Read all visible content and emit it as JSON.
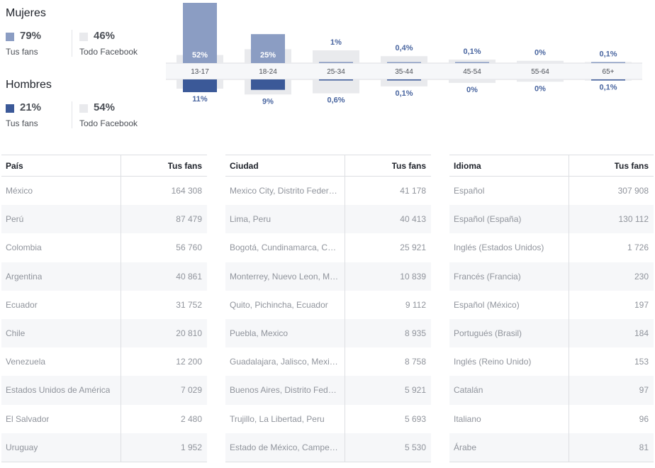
{
  "summary": {
    "women": {
      "title": "Mujeres",
      "fans_pct": "79%",
      "fans_label": "Tus fans",
      "all_pct": "46%",
      "all_label": "Todo Facebook"
    },
    "men": {
      "title": "Hombres",
      "fans_pct": "21%",
      "fans_label": "Tus fans",
      "all_pct": "54%",
      "all_label": "Todo Facebook"
    }
  },
  "colors": {
    "women": "#8b9dc3",
    "men": "#3b5998",
    "facebook": "#e9eaed",
    "label_blue": "#4a66a0",
    "text": "#4b4f56"
  },
  "chart_data": {
    "type": "bar",
    "categories": [
      "13-17",
      "18-24",
      "25-34",
      "35-44",
      "45-54",
      "55-64",
      "65+"
    ],
    "series": [
      {
        "name": "Mujeres",
        "values": [
          52,
          25,
          1,
          0.4,
          0.1,
          0,
          0.1
        ],
        "labels": [
          "52%",
          "25%",
          "1%",
          "0,4%",
          "0,1%",
          "0%",
          "0,1%"
        ]
      },
      {
        "name": "Hombres",
        "values": [
          11,
          9,
          0.6,
          0.1,
          0,
          0,
          0.1
        ],
        "labels": [
          "11%",
          "9%",
          "0,6%",
          "0,1%",
          "0%",
          "0%",
          "0,1%"
        ]
      }
    ],
    "todo_facebook": {
      "mujeres": [
        7,
        12,
        11,
        6,
        3,
        2,
        1
      ],
      "hombres": [
        8,
        13,
        12,
        6,
        3,
        2,
        1
      ]
    }
  },
  "tables": [
    {
      "header": {
        "col1": "País",
        "col2": "Tus fans"
      },
      "rows": [
        {
          "name": "México",
          "value": "164 308"
        },
        {
          "name": "Perú",
          "value": "87 479"
        },
        {
          "name": "Colombia",
          "value": "56 760"
        },
        {
          "name": "Argentina",
          "value": "40 861"
        },
        {
          "name": "Ecuador",
          "value": "31 752"
        },
        {
          "name": "Chile",
          "value": "20 810"
        },
        {
          "name": "Venezuela",
          "value": "12 200"
        },
        {
          "name": "Estados Unidos de América",
          "value": "7 029"
        },
        {
          "name": "El Salvador",
          "value": "2 480"
        },
        {
          "name": "Uruguay",
          "value": "1 952"
        }
      ]
    },
    {
      "header": {
        "col1": "Ciudad",
        "col2": "Tus fans"
      },
      "rows": [
        {
          "name": "Mexico City, Distrito Feder…",
          "value": "41 178"
        },
        {
          "name": "Lima, Peru",
          "value": "40 413"
        },
        {
          "name": "Bogotá, Cundinamarca, C…",
          "value": "25 921"
        },
        {
          "name": "Monterrey, Nuevo Leon, M…",
          "value": "10 839"
        },
        {
          "name": "Quito, Pichincha, Ecuador",
          "value": "9 112"
        },
        {
          "name": "Puebla, Mexico",
          "value": "8 935"
        },
        {
          "name": "Guadalajara, Jalisco, Mexi…",
          "value": "8 758"
        },
        {
          "name": "Buenos Aires, Distrito Fed…",
          "value": "5 921"
        },
        {
          "name": "Trujillo, La Libertad, Peru",
          "value": "5 693"
        },
        {
          "name": "Estado de México, Campe…",
          "value": "5 530"
        }
      ]
    },
    {
      "header": {
        "col1": "Idioma",
        "col2": "Tus fans"
      },
      "rows": [
        {
          "name": "Español",
          "value": "307 908"
        },
        {
          "name": "Español (España)",
          "value": "130 112"
        },
        {
          "name": "Inglés (Estados Unidos)",
          "value": "1 726"
        },
        {
          "name": "Francés (Francia)",
          "value": "230"
        },
        {
          "name": "Español (México)",
          "value": "197"
        },
        {
          "name": "Portugués (Brasil)",
          "value": "184"
        },
        {
          "name": "Inglés (Reino Unido)",
          "value": "153"
        },
        {
          "name": "Catalán",
          "value": "97"
        },
        {
          "name": "Italiano",
          "value": "96"
        },
        {
          "name": "Árabe",
          "value": "81"
        }
      ]
    }
  ]
}
